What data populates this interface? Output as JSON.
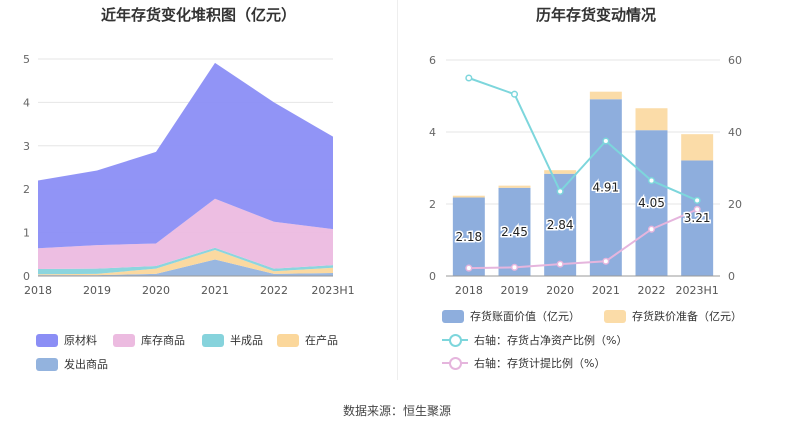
{
  "source": "数据来源：恒生聚源",
  "chart_data": [
    {
      "type": "area",
      "stacked": true,
      "title": "近年存货变化堆积图（亿元）",
      "categories": [
        "2018",
        "2019",
        "2020",
        "2021",
        "2022",
        "2023H1"
      ],
      "ylim": [
        0,
        5
      ],
      "yticks": [
        0,
        1,
        2,
        3,
        4,
        5
      ],
      "grid": true,
      "legend_position": "bottom",
      "series": [
        {
          "name": "发出商品",
          "color": "#93b3de",
          "values": [
            0.02,
            0.02,
            0.05,
            0.38,
            0.05,
            0.07
          ]
        },
        {
          "name": "在产品",
          "color": "#fbd79b",
          "values": [
            0.02,
            0.03,
            0.12,
            0.22,
            0.06,
            0.12
          ]
        },
        {
          "name": "半成品",
          "color": "#86d3dc",
          "values": [
            0.12,
            0.12,
            0.06,
            0.05,
            0.06,
            0.06
          ]
        },
        {
          "name": "库存商品",
          "color": "#ecbbe0",
          "values": [
            0.48,
            0.54,
            0.52,
            1.13,
            1.08,
            0.83
          ]
        },
        {
          "name": "原材料",
          "color": "#8b8ef5",
          "values": [
            1.56,
            1.72,
            2.11,
            3.13,
            2.75,
            2.13
          ]
        }
      ],
      "legend_order": [
        "原材料",
        "库存商品",
        "半成品",
        "在产品",
        "发出商品"
      ]
    },
    {
      "type": "bar",
      "title": "历年存货变动情况",
      "categories": [
        "2018",
        "2019",
        "2020",
        "2021",
        "2022",
        "2023H1"
      ],
      "ylim": [
        0,
        6
      ],
      "yticks": [
        0,
        2,
        4,
        6
      ],
      "y2lim": [
        0,
        60
      ],
      "y2ticks": [
        0,
        20,
        40,
        60
      ],
      "grid": true,
      "legend_position": "bottom",
      "series": [
        {
          "name": "存货账面价值（亿元）",
          "kind": "bar",
          "color": "#8eaedd",
          "values": [
            2.18,
            2.45,
            2.84,
            4.91,
            4.05,
            3.21
          ],
          "labels": [
            "2.18",
            "2.45",
            "2.84",
            "4.91",
            "4.05",
            "3.21"
          ]
        },
        {
          "name": "存货跌价准备（亿元）",
          "kind": "bar-stack",
          "color": "#fbdca8",
          "values": [
            0.05,
            0.06,
            0.1,
            0.21,
            0.61,
            0.73
          ]
        },
        {
          "name": "右轴：存货占净资产比例（%）",
          "kind": "line",
          "axis": "right",
          "color": "#7dd6dc",
          "values": [
            55,
            50.5,
            23.5,
            37.5,
            26.5,
            21
          ]
        },
        {
          "name": "右轴：存货计提比例（%）",
          "kind": "line",
          "axis": "right",
          "color": "#e5b5dd",
          "values": [
            2.2,
            2.4,
            3.3,
            4.1,
            13,
            18.5
          ]
        }
      ]
    }
  ]
}
